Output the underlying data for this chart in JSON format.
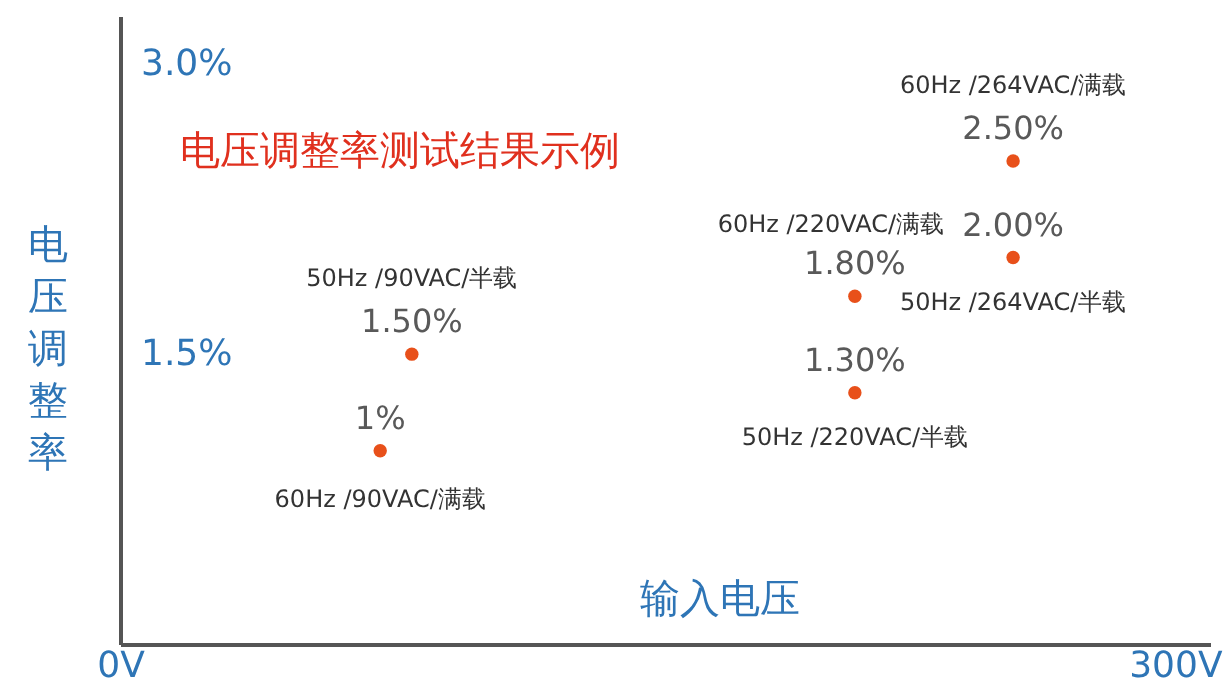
{
  "chart_data": {
    "type": "scatter",
    "title": "电压调整率测试结果示例",
    "xlabel": "输入电压",
    "ylabel": "电压调整率",
    "x": [
      74,
      83,
      209,
      254,
      254,
      209
    ],
    "series": [
      {
        "color": "#e8501a",
        "values": [
          1,
          1.5,
          1.8,
          2.0,
          2.5,
          1.3
        ],
        "value_labels": [
          "1%",
          "1.50%",
          "1.80%",
          "2.00%",
          "2.50%",
          "1.30%"
        ]
      }
    ],
    "annotations": [
      {
        "text": "60Hz /90VAC/满载",
        "x": 74,
        "y": 1
      },
      {
        "text": "50Hz /90VAC/半载",
        "x": 83,
        "y": 1.5
      },
      {
        "text": "60Hz /220VAC/满载",
        "x": 209,
        "y": 1.8
      },
      {
        "text": "50Hz /264VAC/半载",
        "x": 254,
        "y": 2.0
      },
      {
        "text": "60Hz /264VAC/满载",
        "x": 254,
        "y": 2.5
      },
      {
        "text": "50Hz /220VAC/半载",
        "x": 209,
        "y": 1.3
      }
    ],
    "xlim": [
      0,
      310
    ],
    "ylim": [
      0,
      3.25
    ],
    "xticks": [
      {
        "value": 0,
        "label": "0V"
      },
      {
        "value": 300,
        "label": "300V"
      }
    ],
    "yticks": [
      {
        "value": 1.5,
        "label": "1.5%"
      },
      {
        "value": 3,
        "label": "3.0%"
      }
    ],
    "grid": false,
    "marker": "circle"
  }
}
